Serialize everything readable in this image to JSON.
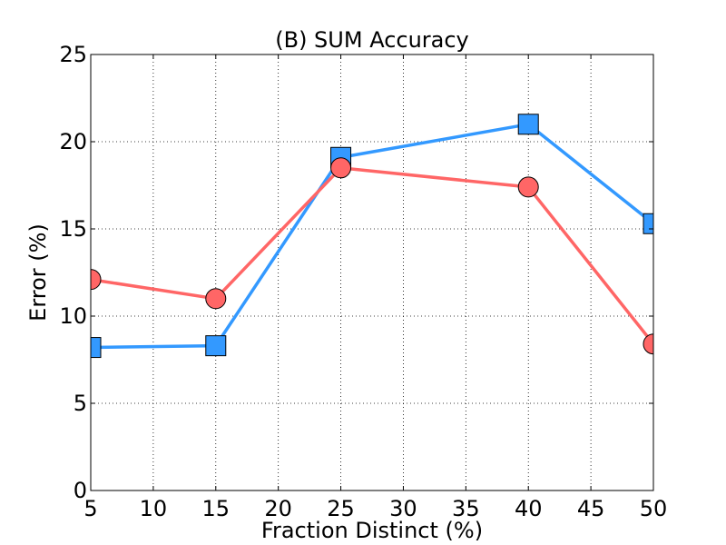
{
  "chart_data": {
    "type": "line",
    "title": "(B) SUM Accuracy",
    "xlabel": "Fraction Distinct (%)",
    "ylabel": "Error (%)",
    "x_positions": [
      0,
      10,
      20,
      30,
      40,
      50,
      60,
      70,
      80,
      90
    ],
    "x_tick_labels": [
      "5",
      "10",
      "15",
      "20",
      "25",
      "30",
      "35",
      "40",
      "45",
      "50"
    ],
    "y_ticks": [
      0,
      5,
      10,
      15,
      20,
      25
    ],
    "ylim": [
      0,
      25
    ],
    "grid": true,
    "series": [
      {
        "marker": "square",
        "color": "#3399ff",
        "x": [
          "5",
          "15",
          "25",
          "40",
          "50"
        ],
        "values": [
          8.2,
          8.3,
          19.1,
          21.0,
          15.3
        ]
      },
      {
        "marker": "circle",
        "color": "#ff6666",
        "x": [
          "5",
          "15",
          "25",
          "40",
          "50"
        ],
        "values": [
          12.1,
          11.0,
          18.5,
          17.4,
          8.4
        ]
      }
    ]
  }
}
